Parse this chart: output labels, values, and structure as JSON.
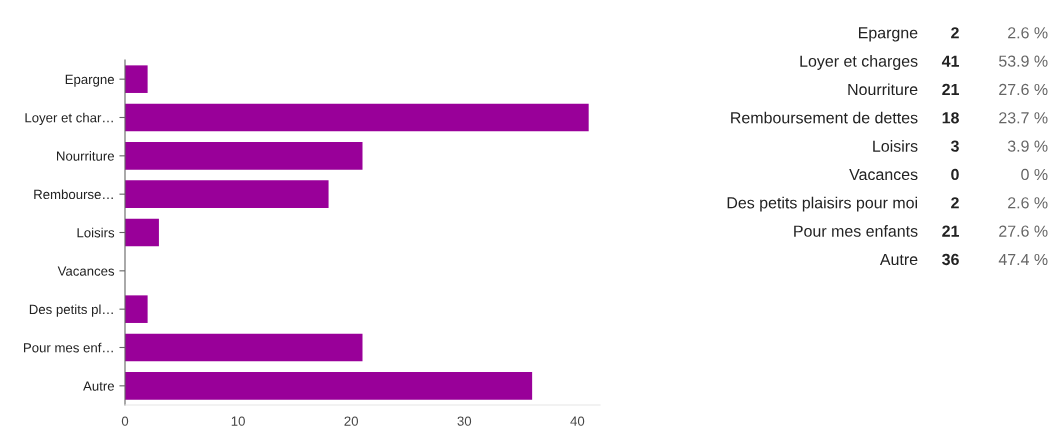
{
  "chart_data": [
    {
      "type": "bar",
      "orientation": "horizontal",
      "categories": [
        "Epargne",
        "Loyer et char…",
        "Nourriture",
        "Rembourse…",
        "Loisirs",
        "Vacances",
        "Des petits pl…",
        "Pour mes enf…",
        "Autre"
      ],
      "values": [
        2,
        41,
        21,
        18,
        3,
        0,
        2,
        21,
        36
      ],
      "color": "#990099",
      "xlim": [
        0,
        42
      ],
      "xticks": [
        0,
        10,
        20,
        30,
        40
      ],
      "grid": false,
      "legend": false
    },
    {
      "type": "other",
      "data_labels": true,
      "categories": [
        "Epargne",
        "Loyer et charges",
        "Nourriture",
        "Remboursement de dettes",
        "Loisirs",
        "Vacances",
        "Des petits plaisirs pour moi",
        "Pour mes enfants",
        "Autre"
      ],
      "series": [
        {
          "values": [
            2,
            41,
            21,
            18,
            3,
            0,
            2,
            21,
            36
          ]
        },
        {
          "values": [
            2.6,
            53.9,
            27.6,
            23.7,
            3.9,
            0,
            2.6,
            27.6,
            47.4
          ],
          "value_labels": [
            "2.6 %",
            "53.9 %",
            "27.6 %",
            "23.7 %",
            "3.9 %",
            "0 %",
            "2.6 %",
            "27.6 %",
            "47.4 %"
          ]
        }
      ]
    }
  ]
}
